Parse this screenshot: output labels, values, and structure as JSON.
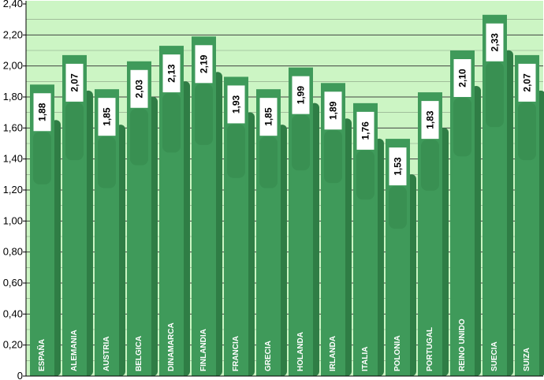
{
  "chart_data": {
    "type": "bar",
    "title": "",
    "xlabel": "",
    "ylabel": "",
    "ylim": [
      0,
      2.4
    ],
    "yticks": [
      "0",
      "0,20",
      "0,40",
      "0,60",
      "0,80",
      "1,00",
      "1,20",
      "1,40",
      "1,60",
      "1,80",
      "2,00",
      "2,20",
      "2,40"
    ],
    "categories": [
      "ESPAÑA",
      "ALEMANIA",
      "AUSTRIA",
      "BELGICA",
      "DINAMARCA",
      "FINLANDIA",
      "FRANCIA",
      "GRECIA",
      "HOLANDA",
      "IRLANDA",
      "ITALIA",
      "POLONIA",
      "PORTUGAL",
      "REINO UNIDO",
      "SUECIA",
      "SUIZA"
    ],
    "values": [
      1.88,
      2.07,
      1.85,
      2.03,
      2.13,
      2.19,
      1.93,
      1.85,
      1.99,
      1.89,
      1.76,
      1.53,
      1.83,
      2.1,
      2.33,
      2.07
    ],
    "value_labels": [
      "1,88",
      "2,07",
      "1,85",
      "2,03",
      "2,13",
      "2,19",
      "1,93",
      "1,85",
      "1,99",
      "1,89",
      "1,76",
      "1,53",
      "1,83",
      "2,10",
      "2,33",
      "2,07"
    ],
    "grid": true,
    "legend": "none",
    "colors": {
      "plot_background": "#ccf5c4",
      "bar": "#3f9a5a",
      "bar_dark": "#2f7d45",
      "gridline": "#333333",
      "label_box": "#ffffff",
      "category_text": "#ffffff"
    }
  }
}
